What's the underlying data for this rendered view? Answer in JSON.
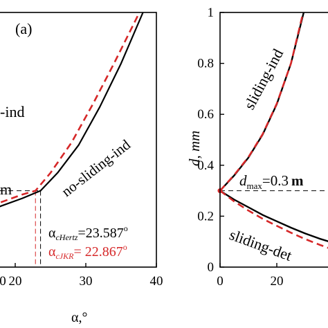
{
  "chart_data": [
    {
      "panel": "left",
      "type": "line",
      "panel_label": "(a)",
      "xlabel": "α,°",
      "xlim": [
        0,
        40
      ],
      "ylim": [
        0,
        1
      ],
      "x_ticks": [
        {
          "value": 20,
          "label": "20"
        },
        {
          "value": 30,
          "label": "30"
        },
        {
          "value": 40,
          "label": "40"
        }
      ],
      "partial_x_tick": {
        "value": 10,
        "label": "0"
      },
      "region_labels": [
        {
          "text": "-ind",
          "note": "cut off at left edge"
        },
        {
          "text": "no-sliding-ind"
        },
        {
          "text": "m",
          "note": "cut off at left edge"
        }
      ],
      "annotations": {
        "hertz": {
          "prefix": "α",
          "sub": "cHertz",
          "value": "=23.587",
          "sup": "o",
          "x": 23.587
        },
        "jkr": {
          "prefix": "α",
          "sub": "cJKR",
          "value": "= 22.867",
          "sup": "o",
          "x": 22.867
        }
      },
      "threshold_y": 0.3,
      "series": [
        {
          "key": "hertz",
          "color": "#000000",
          "dash": "solid",
          "x": [
            9,
            12,
            15,
            18,
            21,
            23.59,
            26,
            29,
            32,
            35,
            38.1
          ],
          "y": [
            0.16,
            0.185,
            0.21,
            0.24,
            0.27,
            0.3,
            0.37,
            0.48,
            0.63,
            0.8,
            1.0
          ]
        },
        {
          "key": "jkr",
          "color": "#d62728",
          "dash": "dashed",
          "x": [
            9,
            12,
            15,
            18,
            21,
            22.87,
            25,
            28,
            31,
            34,
            37.6
          ],
          "y": [
            0.175,
            0.2,
            0.225,
            0.255,
            0.285,
            0.3,
            0.37,
            0.49,
            0.64,
            0.8,
            1.0
          ]
        }
      ]
    },
    {
      "panel": "right",
      "type": "line",
      "ylabel": "d, mm",
      "xlim": [
        0,
        50
      ],
      "ylim": [
        0,
        1
      ],
      "x_ticks": [
        {
          "value": 0,
          "label": "0"
        },
        {
          "value": 20,
          "label": "20"
        }
      ],
      "y_ticks": [
        {
          "value": 0,
          "label": "0"
        },
        {
          "value": 0.2,
          "label": "0.2"
        },
        {
          "value": 0.4,
          "label": "0.4"
        },
        {
          "value": 0.6,
          "label": "0.6"
        },
        {
          "value": 0.8,
          "label": "0.8"
        },
        {
          "value": 1,
          "label": "1"
        }
      ],
      "region_labels": [
        {
          "text": "sliding-ind"
        },
        {
          "text": "sliding-det"
        }
      ],
      "dmax": {
        "italic": "d",
        "sub": "max",
        "value": "=0.3",
        "unit": "m",
        "y": 0.3
      },
      "zero_line_y": 0,
      "series": [
        {
          "key": "ind-solid",
          "color": "#000000",
          "dash": "solid",
          "x": [
            0,
            5,
            10,
            15,
            20,
            25,
            29.5
          ],
          "y": [
            0.3,
            0.36,
            0.43,
            0.52,
            0.64,
            0.8,
            1.0
          ]
        },
        {
          "key": "ind-dashed",
          "color": "#d62728",
          "dash": "dashed",
          "x": [
            0,
            5,
            10,
            15,
            20,
            25,
            29.3
          ],
          "y": [
            0.3,
            0.362,
            0.432,
            0.522,
            0.642,
            0.8,
            1.0
          ]
        },
        {
          "key": "det-solid",
          "color": "#000000",
          "dash": "solid",
          "x": [
            0,
            5,
            10,
            15,
            20,
            25,
            30,
            35,
            40,
            45,
            50
          ],
          "y": [
            0.3,
            0.265,
            0.235,
            0.205,
            0.18,
            0.155,
            0.132,
            0.112,
            0.095,
            0.08,
            0.068
          ]
        },
        {
          "key": "det-dashed",
          "color": "#d62728",
          "dash": "dashed",
          "x": [
            0,
            5,
            10,
            15,
            20,
            25,
            30,
            35,
            40,
            45,
            50
          ],
          "y": [
            0.3,
            0.258,
            0.222,
            0.19,
            0.162,
            0.135,
            0.11,
            0.088,
            0.068,
            0.05,
            0.035
          ]
        }
      ]
    }
  ]
}
